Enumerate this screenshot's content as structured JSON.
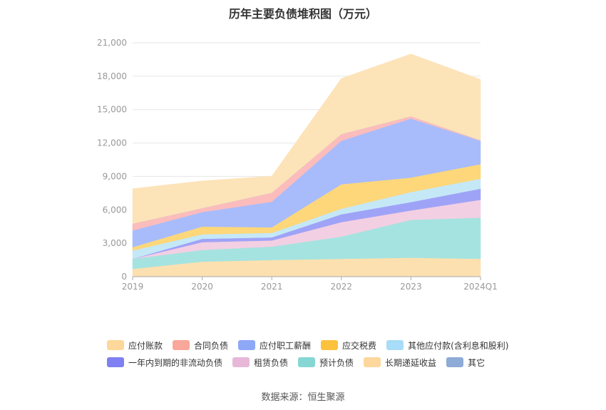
{
  "chart_data": {
    "type": "area",
    "title": "历年主要负债堆积图（万元）",
    "categories": [
      "2019",
      "2020",
      "2021",
      "2022",
      "2023",
      "2024Q1"
    ],
    "yticks": [
      "0",
      "3,000",
      "6,000",
      "9,000",
      "12,000",
      "15,000",
      "18,000",
      "21,000"
    ],
    "ylim": [
      0,
      21000
    ],
    "grid": true,
    "legend_position": "bottom",
    "series": [
      {
        "name": "长期递延收益",
        "color": "#fde0b0",
        "values": [
          700,
          1350,
          1500,
          1600,
          1700,
          1600
        ]
      },
      {
        "name": "预计负债",
        "color": "#a5e3e0",
        "values": [
          900,
          1050,
          1200,
          2000,
          3400,
          3700
        ]
      },
      {
        "name": "租赁负债",
        "color": "#f3cfe3",
        "values": [
          0,
          700,
          550,
          1300,
          850,
          1600
        ]
      },
      {
        "name": "一年内到期的非流动负债",
        "color": "#9fa3f7",
        "values": [
          0,
          300,
          280,
          700,
          750,
          1000
        ]
      },
      {
        "name": "其他应付款(含利息和股利)",
        "color": "#c5e8f7",
        "values": [
          750,
          400,
          400,
          500,
          900,
          900
        ]
      },
      {
        "name": "应交税费",
        "color": "#fdd77a",
        "values": [
          300,
          700,
          500,
          2200,
          1300,
          1300
        ]
      },
      {
        "name": "应付职工薪酬",
        "color": "#a8bcfc",
        "values": [
          1500,
          1300,
          2300,
          3900,
          5300,
          2100
        ]
      },
      {
        "name": "合同负债",
        "color": "#fcbcbc",
        "values": [
          600,
          350,
          800,
          600,
          200,
          50
        ]
      },
      {
        "name": "其它",
        "color": "#93add9",
        "values": [
          0,
          0,
          0,
          0,
          0,
          0
        ]
      },
      {
        "name": "应付账款",
        "color": "#fde3b8",
        "values": [
          3150,
          2450,
          1500,
          5000,
          5600,
          5450
        ]
      }
    ]
  },
  "legend": {
    "row1": [
      {
        "label": "应付账款",
        "color": "#fdd89a"
      },
      {
        "label": "合同负债",
        "color": "#f9a79a"
      },
      {
        "label": "应付职工薪酬",
        "color": "#8ea8f8"
      },
      {
        "label": "应交税费",
        "color": "#fcc23e"
      },
      {
        "label": "其他应付款(含利息和股利)",
        "color": "#a8dcf8"
      }
    ],
    "row2": [
      {
        "label": "一年内到期的非流动负债",
        "color": "#7f80f2"
      },
      {
        "label": "租赁负债",
        "color": "#e8b8d8"
      },
      {
        "label": "预计负债",
        "color": "#86d7d3"
      },
      {
        "label": "长期递延收益",
        "color": "#fdd79c"
      },
      {
        "label": "其它",
        "color": "#8eaad6"
      }
    ]
  },
  "source": "数据来源：恒生聚源"
}
